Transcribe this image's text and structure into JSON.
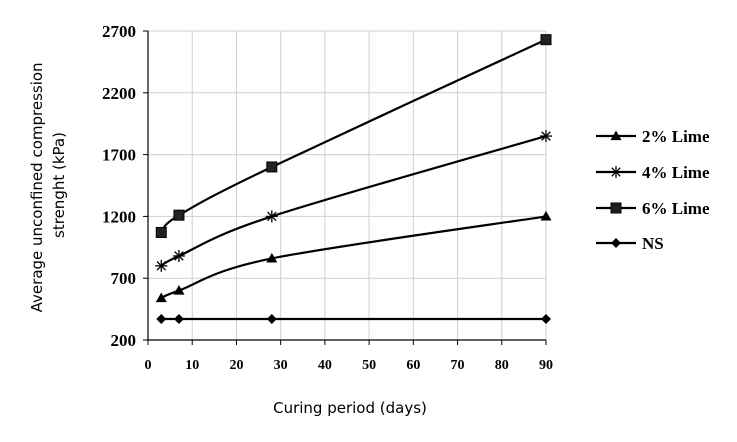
{
  "chart_data": {
    "type": "line",
    "title": "",
    "xlabel": "Curing period (days)",
    "ylabel": "Average unconfined compression strenght (kPa)",
    "ylabel_lines": [
      "Average unconfined compression",
      "strenght (kPa)"
    ],
    "xlim": [
      0,
      90
    ],
    "ylim": [
      200,
      2700
    ],
    "x_ticks": [
      "0",
      "10",
      "20",
      "30",
      "40",
      "50",
      "60",
      "70",
      "80",
      "90"
    ],
    "x_tick_values": [
      0,
      10,
      20,
      30,
      40,
      50,
      60,
      70,
      80,
      90
    ],
    "y_ticks": [
      "200",
      "700",
      "1200",
      "1700",
      "2200",
      "2700"
    ],
    "y_tick_values": [
      200,
      700,
      1200,
      1700,
      2200,
      2700
    ],
    "grid": true,
    "legend_position": "right",
    "series": [
      {
        "name": "2% Lime",
        "marker": "triangle",
        "color": "#000000",
        "x": [
          3,
          7,
          28,
          90
        ],
        "y": [
          540,
          600,
          860,
          1200
        ]
      },
      {
        "name": "4% Lime",
        "marker": "asterisk",
        "color": "#000000",
        "x": [
          3,
          7,
          28,
          90
        ],
        "y": [
          800,
          880,
          1200,
          1850
        ]
      },
      {
        "name": "6% Lime",
        "marker": "square",
        "color": "#000000",
        "x": [
          3,
          7,
          28,
          90
        ],
        "y": [
          1070,
          1210,
          1600,
          2630
        ]
      },
      {
        "name": "NS",
        "marker": "diamond",
        "color": "#000000",
        "x": [
          3,
          7,
          28,
          90
        ],
        "y": [
          370,
          370,
          370,
          370
        ]
      }
    ]
  }
}
